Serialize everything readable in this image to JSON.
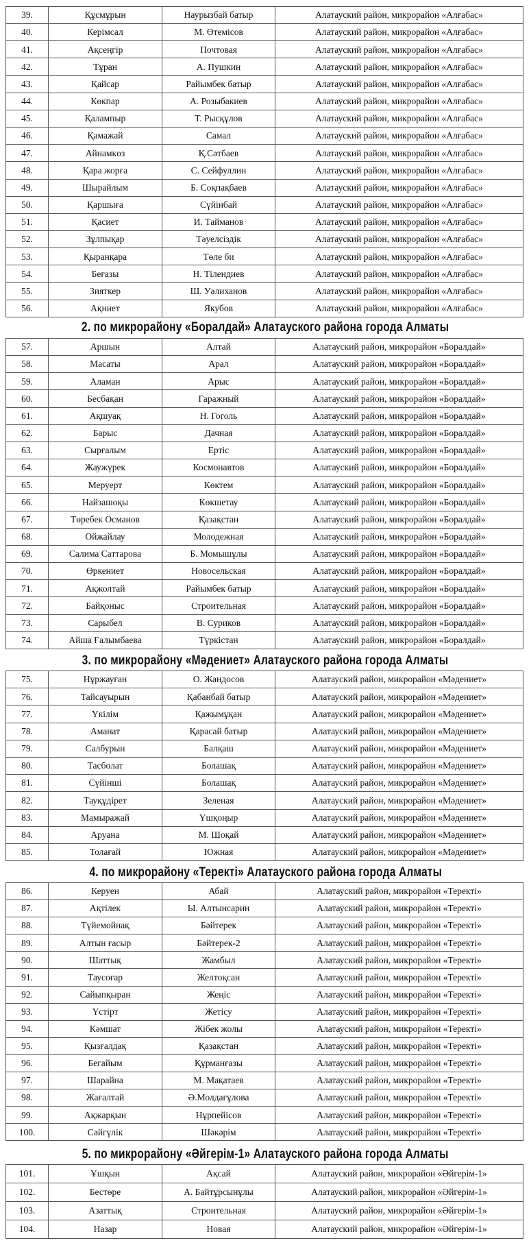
{
  "sections": [
    {
      "heading": "",
      "rows": [
        [
          "39.",
          "Құсмұрын",
          "Наурызбай батыр",
          "Алатауский район, микрорайон «Алғабас»"
        ],
        [
          "40.",
          "Керімсал",
          "М. Өтемісов",
          "Алатауский район, микрорайон «Алғабас»"
        ],
        [
          "41.",
          "Ақсеңгір",
          "Почтовая",
          "Алатауский район, микрорайон «Алғабас»"
        ],
        [
          "42.",
          "Тұран",
          "А. Пушкин",
          "Алатауский район, микрорайон «Алғабас»"
        ],
        [
          "43.",
          "Қайсар",
          "Райымбек батыр",
          "Алатауский район, микрорайон «Алғабас»"
        ],
        [
          "44.",
          "Көкпар",
          "А. Розыбакиев",
          "Алатауский район, микрорайон «Алғабас»"
        ],
        [
          "45.",
          "Қалампыр",
          "Т. Рысқұлов",
          "Алатауский район, микрорайон «Алғабас»"
        ],
        [
          "46.",
          "Қамажай",
          "Самал",
          "Алатауский район, микрорайон «Алғабас»"
        ],
        [
          "47.",
          "Айнамкөз",
          "Қ.Сәтбаев",
          "Алатауский район, микрорайон «Алғабас»"
        ],
        [
          "48.",
          "Қара жорға",
          "С. Сейфуллин",
          "Алатауский район, микрорайон «Алғабас»"
        ],
        [
          "49.",
          "Шырайлым",
          "Б. Соқпақбаев",
          "Алатауский район, микрорайон «Алғабас»"
        ],
        [
          "50.",
          "Қаршыға",
          "Сүйінбай",
          "Алатауский район, микрорайон «Алғабас»"
        ],
        [
          "51.",
          "Қасиет",
          "И. Тайманов",
          "Алатауский район, микрорайон «Алғабас»"
        ],
        [
          "52.",
          "Зұлпықар",
          "Тәуелсіздік",
          "Алатауский район, микрорайон «Алғабас»"
        ],
        [
          "53.",
          "Қыранқара",
          "Төле би",
          "Алатауский район, микрорайон «Алғабас»"
        ],
        [
          "54.",
          "Беғазы",
          "Н. Тілендиев",
          "Алатауский район, микрорайон «Алғабас»"
        ],
        [
          "55.",
          "Зияткер",
          "Ш. Уәлиханов",
          "Алатауский район, микрорайон «Алғабас»"
        ],
        [
          "56.",
          "Ақниет",
          "Якубов",
          "Алатауский район, микрорайон «Алғабас»"
        ]
      ]
    },
    {
      "heading": "2. по микрорайону «Боралдай» Алатауского района города Алматы",
      "rows": [
        [
          "57.",
          "Аршын",
          "Алтай",
          "Алатауский район, микрорайон «Боралдай»"
        ],
        [
          "58.",
          "Масаты",
          "Арал",
          "Алатауский район, микрорайон «Боралдай»"
        ],
        [
          "59.",
          "Аламан",
          "Арыс",
          "Алатауский район, микрорайон «Боралдай»"
        ],
        [
          "60.",
          "Бесбақан",
          "Гаражный",
          "Алатауский район, микрорайон «Боралдай»"
        ],
        [
          "61.",
          "Ақшуақ",
          "Н. Гоголь",
          "Алатауский район, микрорайон «Боралдай»"
        ],
        [
          "62.",
          "Барыс",
          "Дачная",
          "Алатауский район, микрорайон «Боралдай»"
        ],
        [
          "63.",
          "Сырғалым",
          "Ертіс",
          "Алатауский район, микрорайон «Боралдай»"
        ],
        [
          "64.",
          "Жаужүрек",
          "Космонавтов",
          "Алатауский район, микрорайон «Боралдай»"
        ],
        [
          "65.",
          "Меруерт",
          "Көктем",
          "Алатауский район, микрорайон «Боралдай»"
        ],
        [
          "66.",
          "Найзашоқы",
          "Көкшетау",
          "Алатауский район, микрорайон «Боралдай»"
        ],
        [
          "67.",
          "Төребек Османов",
          "Қазақстан",
          "Алатауский район, микрорайон «Боралдай»"
        ],
        [
          "68.",
          "Ойжайлау",
          "Молодежная",
          "Алатауский район, микрорайон «Боралдай»"
        ],
        [
          "69.",
          "Салима Саттарова",
          "Б. Момышұлы",
          "Алатауский район, микрорайон «Боралдай»"
        ],
        [
          "70.",
          "Өркениет",
          "Новосельская",
          "Алатауский район, микрорайон «Боралдай»"
        ],
        [
          "71.",
          "Ақжолтай",
          "Райымбек батыр",
          "Алатауский район, микрорайон «Боралдай»"
        ],
        [
          "72.",
          "Байқоныс",
          "Строительная",
          "Алатауский район, микрорайон «Боралдай»"
        ],
        [
          "73.",
          "Сарыбел",
          "В. Суриков",
          "Алатауский район, микрорайон «Боралдай»"
        ],
        [
          "74.",
          "Айша Ғалымбаева",
          "Түркістан",
          "Алатауский район, микрорайон «Боралдай»"
        ]
      ]
    },
    {
      "heading": "3. по микрорайону «Мәдениет» Алатауского района города Алматы",
      "rows": [
        [
          "75.",
          "Нұржауған",
          "О. Жандосов",
          "Алатауский район, микрорайон «Мәдениет»"
        ],
        [
          "76.",
          "Тайсауырын",
          "Қабанбай батыр",
          "Алатауский район, микрорайон «Мәдениет»"
        ],
        [
          "77.",
          "Үкілім",
          "Қажымұқан",
          "Алатауский район, микрорайон «Мәдениет»"
        ],
        [
          "78.",
          "Аманат",
          "Қарасай батыр",
          "Алатауский район, микрорайон «Мәдениет»"
        ],
        [
          "79.",
          "Салбурын",
          "Балқаш",
          "Алатауский район, микрорайон «Мәдениет»"
        ],
        [
          "80.",
          "Тасболат",
          "Болашақ",
          "Алатауский район, микрорайон «Мәдениет»"
        ],
        [
          "81.",
          "Сүйінші",
          "Болашақ",
          "Алатауский район, микрорайон «Мәдениет»"
        ],
        [
          "82.",
          "Тауқұдірет",
          "Зеленая",
          "Алатауский район, микрорайон «Мәдениет»"
        ],
        [
          "83.",
          "Мамыражай",
          "Үшқоңыр",
          "Алатауский район, микрорайон «Мәдениет»"
        ],
        [
          "84.",
          "Аруана",
          "М. Шоқай",
          "Алатауский район, микрорайон «Мәдениет»"
        ],
        [
          "85.",
          "Толағай",
          "Южная",
          "Алатауский район, микрорайон «Мәдениет»"
        ]
      ]
    },
    {
      "heading": "4. по микрорайону  «Теректі» Алатауского района города Алматы",
      "rows": [
        [
          "86.",
          "Керуен",
          "Абай",
          "Алатауский район, микрорайон «Теректі»"
        ],
        [
          "87.",
          "Ақтілек",
          "Ы. Алтынсарин",
          "Алатауский район, микрорайон «Теректі»"
        ],
        [
          "88.",
          "Түйемойнақ",
          "Бәйтерек",
          "Алатауский район, микрорайон «Теректі»"
        ],
        [
          "89.",
          "Алтын ғасыр",
          "Бәйтерек-2",
          "Алатауский район, микрорайон «Теректі»"
        ],
        [
          "90.",
          "Шаттық",
          "Жамбыл",
          "Алатауский район, микрорайон «Теректі»"
        ],
        [
          "91.",
          "Таусоғар",
          "Желтоқсан",
          "Алатауский район, микрорайон «Теректі»"
        ],
        [
          "92.",
          "Сайыпқыран",
          "Жеңіс",
          "Алатауский район, микрорайон «Теректі»"
        ],
        [
          "93.",
          "Үстірт",
          "Жетісу",
          "Алатауский район, микрорайон «Теректі»"
        ],
        [
          "94.",
          "Кәмшат",
          "Жібек жолы",
          "Алатауский район, микрорайон «Теректі»"
        ],
        [
          "95.",
          "Қызғалдақ",
          "Қазақстан",
          "Алатауский район, микрорайон «Теректі»"
        ],
        [
          "96.",
          "Бегайым",
          "Құрманғазы",
          "Алатауский район, микрорайон «Теректі»"
        ],
        [
          "97.",
          "Шарайна",
          "М. Мақатаев",
          "Алатауский район, микрорайон «Теректі»"
        ],
        [
          "98.",
          "Жағалтай",
          "Ә.Молдағұлова",
          "Алатауский район, микрорайон «Теректі»"
        ],
        [
          "99.",
          "Ақжарқын",
          "Нұрпейісов",
          "Алатауский район, микрорайон «Теректі»"
        ],
        [
          "100.",
          "Сәйгүлік",
          "Шәкәрім",
          "Алатауский район, микрорайон «Теректі»"
        ]
      ]
    },
    {
      "heading": "5. по микрорайону «Әйгерім-1» Алатауского района города Алматы",
      "rows": [
        [
          "101.",
          "Ұшқын",
          "Ақсай",
          "Алатауский район, микрорайон «Әйгерім-1»"
        ],
        [
          "102.",
          "Бестөре",
          "А. Байтұрсынұлы",
          "Алатауский район, микрорайон «Әйгерім-1»"
        ],
        [
          "103.",
          "Азаттық",
          "Строительная",
          "Алатауский район, микрорайон «Әйгерім-1»"
        ],
        [
          "104.",
          "Назар",
          "Новая",
          "Алатауский район, микрорайон «Әйгерім-1»"
        ]
      ]
    }
  ]
}
